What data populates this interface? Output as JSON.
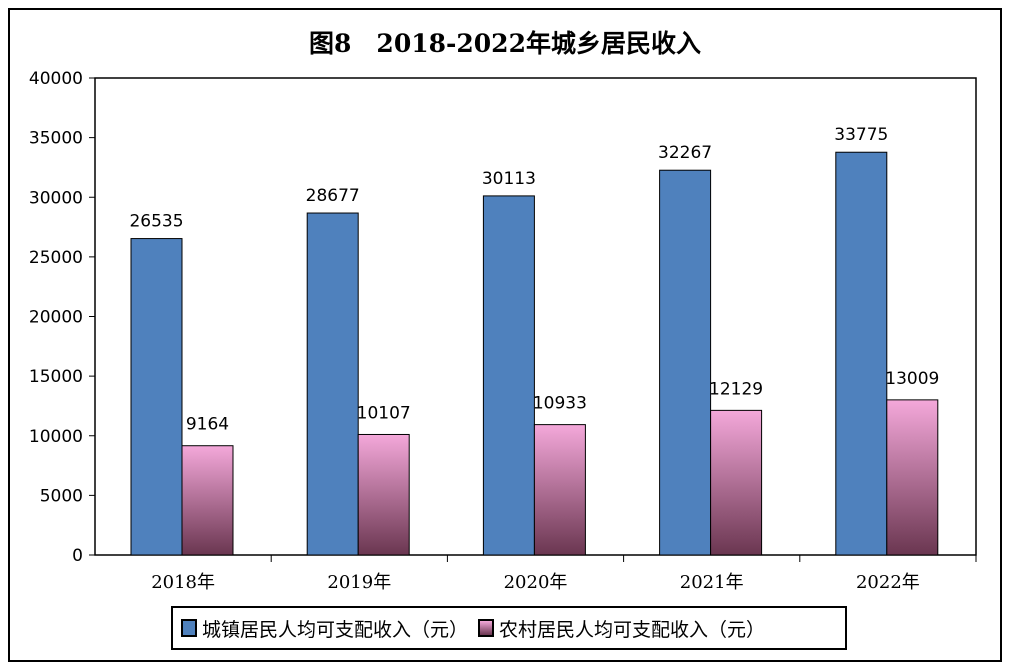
{
  "chart_data": {
    "type": "bar",
    "title": "图8　2018-2022年城乡居民收入",
    "categories": [
      "2018年",
      "2019年",
      "2020年",
      "2021年",
      "2022年"
    ],
    "series": [
      {
        "name": "城镇居民人均可支配收入（元）",
        "values": [
          26535,
          28677,
          30113,
          32267,
          33775
        ],
        "color": "#4F81BD"
      },
      {
        "name": "农村居民人均可支配收入（元）",
        "values": [
          9164,
          10107,
          10933,
          12129,
          13009
        ],
        "color": "#E9A0D0"
      }
    ],
    "ylim": [
      0,
      40000
    ],
    "yticks": [
      0,
      5000,
      10000,
      15000,
      20000,
      25000,
      30000,
      35000,
      40000
    ],
    "xlabel": "",
    "ylabel": "",
    "grid": false,
    "legend": "bottom"
  }
}
